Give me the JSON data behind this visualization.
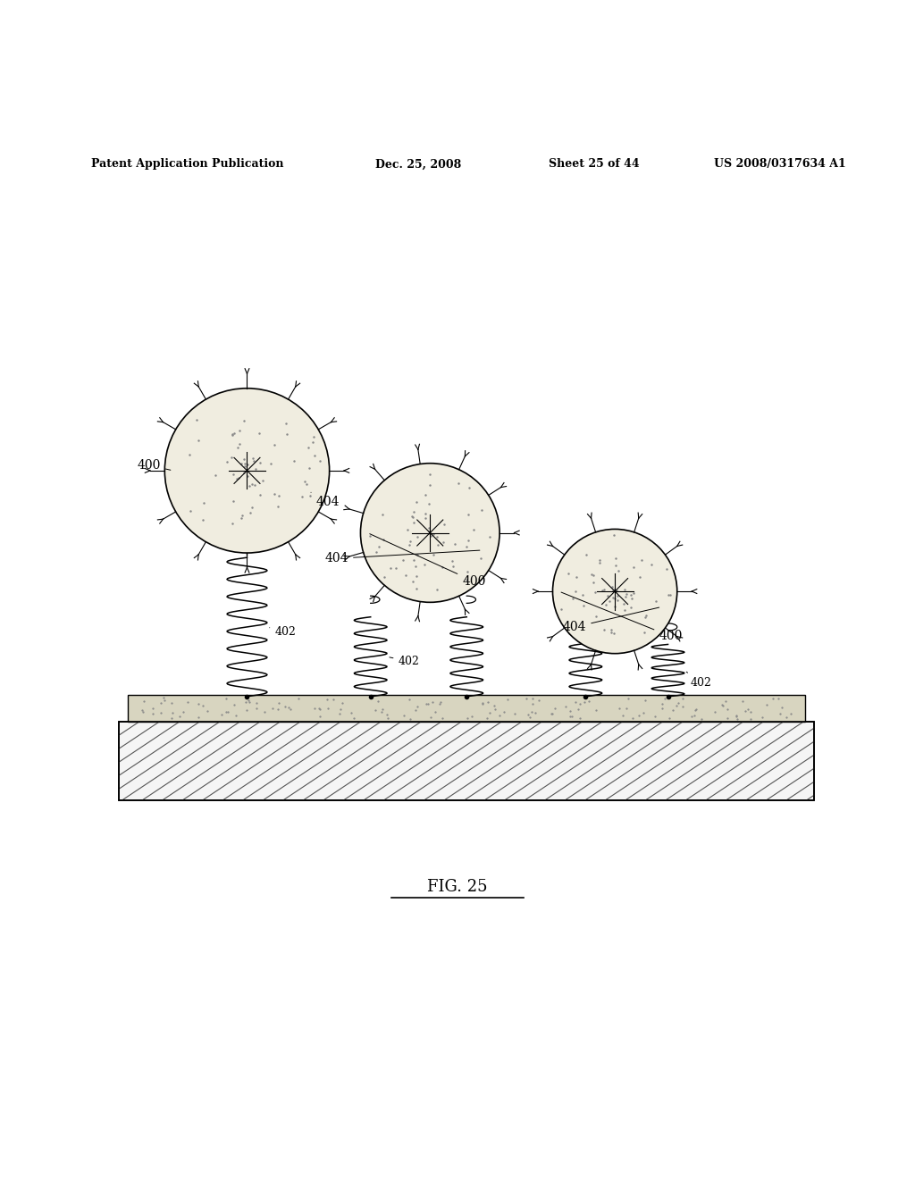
{
  "title_header": "Patent Application Publication",
  "date_header": "Dec. 25, 2008",
  "sheet_header": "Sheet 25 of 44",
  "patent_header": "US 2008/0317634 A1",
  "fig_label": "FIG. 25",
  "background_color": "#ffffff"
}
